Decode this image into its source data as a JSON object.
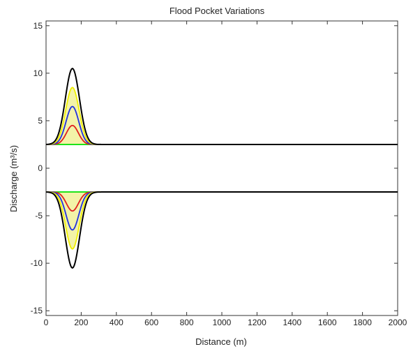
{
  "chart_data": {
    "type": "line",
    "title": "Flood Pocket Variations",
    "xlabel": "Distance (m)",
    "ylabel": "Discharge (m³/s)",
    "xlim": [
      0,
      2000
    ],
    "ylim": [
      -15.5,
      15.5
    ],
    "xticks": [
      0,
      200,
      400,
      600,
      800,
      1000,
      1200,
      1400,
      1600,
      1800,
      2000
    ],
    "yticks": [
      -15,
      -10,
      -5,
      0,
      5,
      10,
      15
    ],
    "grid": false,
    "baseline": 2.5,
    "peak_center": 150,
    "series": [
      {
        "color": "#00e000",
        "peak": 2.5,
        "width": 26,
        "fill": null
      },
      {
        "color": "#e02020",
        "peak": 4.5,
        "width": 34,
        "fill": null
      },
      {
        "color": "#2233dd",
        "peak": 6.5,
        "width": 36,
        "fill": null
      },
      {
        "color": "#eeee00",
        "peak": 8.5,
        "width": 38,
        "fill": "#f3f3a8"
      },
      {
        "color": "#000000",
        "peak": 10.5,
        "width": 40,
        "fill": null
      }
    ]
  }
}
